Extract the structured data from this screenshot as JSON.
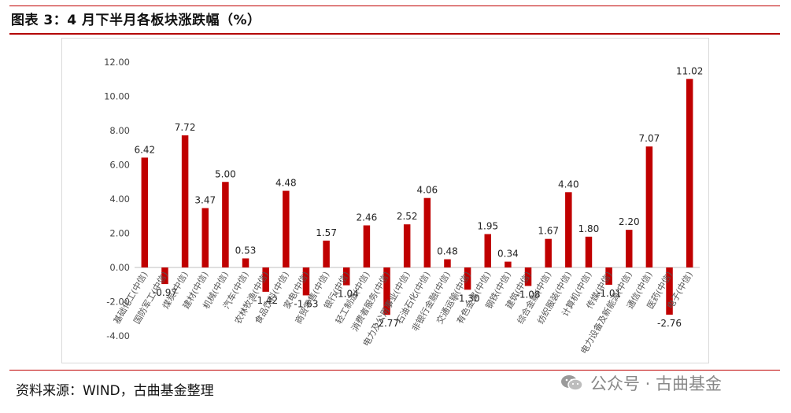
{
  "header": {
    "title": "图表 3：4 月下半月各板块涨跌幅（%）"
  },
  "footer": {
    "source": "资料来源：WIND，古曲基金整理"
  },
  "watermark": {
    "text": "公众号 · 古曲基金",
    "icon": "wechat-icon"
  },
  "colors": {
    "bar": "#c00000",
    "rule": "#c00000",
    "axis": "#bfbfbf"
  },
  "chart_data": {
    "type": "bar",
    "title": "",
    "xlabel": "",
    "ylabel": "",
    "ylim": [
      -4,
      12
    ],
    "yticks": [
      "-4.00",
      "-2.00",
      "0.00",
      "2.00",
      "4.00",
      "6.00",
      "8.00",
      "10.00",
      "12.00"
    ],
    "grid": false,
    "legend": "none",
    "categories": [
      "基础化工(中信)",
      "国防军工(中信)",
      "煤炭(中信)",
      "建材(中信)",
      "机械(中信)",
      "汽车(中信)",
      "农林牧渔(中信)",
      "食品饮料(中信)",
      "家电(中信)",
      "商贸零售(中信)",
      "银行(中信)",
      "轻工制造(中信)",
      "消费者服务(中信)",
      "电力及公用事业(中信)",
      "石油石化(中信)",
      "非银行金融(中信)",
      "交通运输(中信)",
      "有色金属(中信)",
      "钢铁(中信)",
      "建筑(中信)",
      "综合金融(中信)",
      "纺织服装(中信)",
      "计算机(中信)",
      "传媒(中信)",
      "电力设备及新能源(中信)",
      "通信(中信)",
      "医药(中信)",
      "电子(中信)"
    ],
    "values": [
      6.42,
      -0.97,
      7.72,
      3.47,
      5.0,
      0.53,
      -1.42,
      4.48,
      -1.63,
      1.57,
      -1.04,
      2.46,
      -2.77,
      2.52,
      4.06,
      0.48,
      -1.3,
      1.95,
      0.34,
      -1.08,
      1.67,
      4.4,
      1.8,
      -1.01,
      2.2,
      7.07,
      -2.76,
      11.02
    ],
    "labels": [
      "6.42",
      "-0.97",
      "7.72",
      "3.47",
      "5.00",
      "0.53",
      "-1.42",
      "4.48",
      "-1.63",
      "1.57",
      "-1.04",
      "2.46",
      "-2.77",
      "2.52",
      "4.06",
      "0.48",
      "-1.30",
      "1.95",
      "0.34",
      "-1.08",
      "1.67",
      "4.40",
      "1.80",
      "-1.01",
      "2.20",
      "7.07",
      "-2.76",
      "11.02"
    ]
  }
}
